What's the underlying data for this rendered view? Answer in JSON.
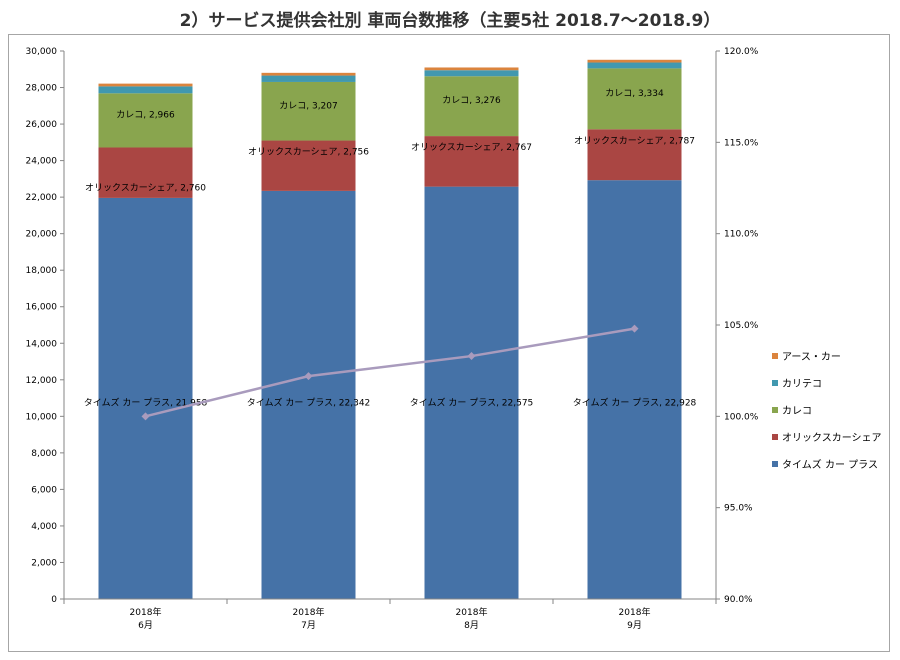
{
  "chart_data": {
    "type": "bar",
    "stacked": true,
    "title": "2）サービス提供会社別 車両台数推移（主要5社 2018.7～2018.9）",
    "categories": [
      [
        "2018年",
        "6月"
      ],
      [
        "2018年",
        "7月"
      ],
      [
        "2018年",
        "8月"
      ],
      [
        "2018年",
        "9月"
      ]
    ],
    "series": [
      {
        "name": "タイムズ カー プラス",
        "color": "#4572a7",
        "values": [
          21958,
          22342,
          22575,
          22928
        ],
        "labels": [
          "タイムズ カー プラス, 21,958",
          "タイムズ カー プラス, 22,342",
          "タイムズ カー プラス, 22,575",
          "タイムズ カー プラス, 22,928"
        ]
      },
      {
        "name": "オリックスカーシェア",
        "color": "#aa4643",
        "values": [
          2760,
          2756,
          2767,
          2787
        ],
        "labels": [
          "オリックスカーシェア, 2,760",
          "オリックスカーシェア, 2,756",
          "オリックスカーシェア, 2,767",
          "オリックスカーシェア, 2,787"
        ]
      },
      {
        "name": "カレコ",
        "color": "#89a54e",
        "values": [
          2966,
          3207,
          3276,
          3334
        ],
        "labels": [
          "カレコ, 2,966",
          "カレコ, 3,207",
          "カレコ, 3,276",
          "カレコ, 3,334"
        ]
      },
      {
        "name": "カリテコ",
        "color": "#4198af",
        "values": [
          380,
          350,
          330,
          320
        ]
      },
      {
        "name": "アース・カー",
        "color": "#db843d",
        "values": [
          150,
          150,
          150,
          150
        ]
      }
    ],
    "line": {
      "values": [
        100.0,
        102.2,
        103.3,
        104.8
      ],
      "color": "#a99bbd",
      "axis": "secondary"
    },
    "y_axis": {
      "min": 0,
      "max": 30000,
      "step": 2000,
      "tick_labels": [
        "0",
        "2,000",
        "4,000",
        "6,000",
        "8,000",
        "10,000",
        "12,000",
        "14,000",
        "16,000",
        "18,000",
        "20,000",
        "22,000",
        "24,000",
        "26,000",
        "28,000",
        "30,000"
      ]
    },
    "y2_axis": {
      "min": 90.0,
      "max": 120.0,
      "step": 5.0,
      "tick_labels": [
        "90.0%",
        "95.0%",
        "100.0%",
        "105.0%",
        "110.0%",
        "115.0%",
        "120.0%"
      ]
    },
    "legend": {
      "position": "right",
      "items": [
        "アース・カー",
        "カリテコ",
        "カレコ",
        "オリックスカーシェア",
        "タイムズ カー プラス"
      ],
      "colors": [
        "#db843d",
        "#4198af",
        "#89a54e",
        "#aa4643",
        "#4572a7"
      ]
    },
    "grid": false
  }
}
